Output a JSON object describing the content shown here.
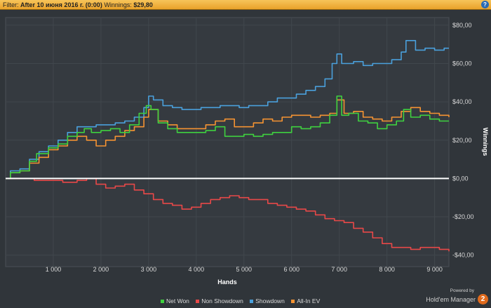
{
  "filter_bar": {
    "prefix": "Filter:",
    "filter_value": "After 10 июня 2016 г. (0:00)",
    "winnings_label": "Winnings:",
    "winnings_value": "$29,80",
    "help_icon": "?"
  },
  "branding": {
    "powered_by": "Powered by",
    "name": "Hold'em Manager",
    "logo_text": "2"
  },
  "chart_data": {
    "type": "line",
    "xlabel": "Hands",
    "ylabel": "Winnings",
    "xlim": [
      0,
      9300
    ],
    "ylim": [
      -46,
      84
    ],
    "x_ticks": [
      1000,
      2000,
      3000,
      4000,
      5000,
      6000,
      7000,
      8000,
      9000
    ],
    "x_tick_labels": [
      "1 000",
      "2 000",
      "3 000",
      "4 000",
      "5 000",
      "6 000",
      "7 000",
      "8 000",
      "9 000"
    ],
    "y_ticks": [
      -40,
      -20,
      0,
      20,
      40,
      60,
      80
    ],
    "y_tick_labels": [
      "-$40,00",
      "-$20,00",
      "$0,00",
      "$20,00",
      "$40,00",
      "$60,00",
      "$80,00"
    ],
    "grid": true,
    "legend_position": "bottom",
    "series": [
      {
        "name": "Net Won",
        "color": "#3fd13f",
        "x": [
          0,
          100,
          300,
          500,
          650,
          900,
          1100,
          1300,
          1500,
          1650,
          1800,
          2000,
          2200,
          2400,
          2600,
          2800,
          2950,
          3050,
          3200,
          3400,
          3600,
          3800,
          4000,
          4200,
          4400,
          4600,
          4800,
          5000,
          5200,
          5400,
          5600,
          5800,
          6000,
          6200,
          6400,
          6600,
          6800,
          6950,
          7050,
          7200,
          7400,
          7600,
          7800,
          8000,
          8200,
          8350,
          8500,
          8700,
          8900,
          9100,
          9300
        ],
        "y": [
          0,
          3,
          4,
          9,
          13,
          16,
          18,
          22,
          24,
          26,
          24,
          25,
          26,
          24,
          28,
          34,
          38,
          36,
          29,
          26,
          24,
          24,
          24,
          25,
          27,
          22,
          22,
          23,
          22,
          23,
          24,
          24,
          27,
          26,
          27,
          29,
          33,
          43,
          33,
          34,
          30,
          29,
          26,
          28,
          30,
          36,
          32,
          33,
          31,
          30,
          30
        ]
      },
      {
        "name": "Non Showdown",
        "color": "#e84848",
        "x": [
          0,
          300,
          600,
          900,
          1200,
          1500,
          1700,
          1900,
          2100,
          2300,
          2500,
          2700,
          2900,
          3100,
          3300,
          3500,
          3700,
          3900,
          4100,
          4300,
          4500,
          4700,
          4900,
          5100,
          5300,
          5500,
          5700,
          5900,
          6100,
          6300,
          6500,
          6700,
          6900,
          7100,
          7300,
          7500,
          7700,
          7900,
          8100,
          8300,
          8500,
          8700,
          8900,
          9100,
          9300
        ],
        "y": [
          0,
          0,
          -1,
          -1,
          -2,
          -1,
          0,
          -3,
          -5,
          -4,
          -3,
          -6,
          -8,
          -11,
          -13,
          -14,
          -16,
          -15,
          -13,
          -11,
          -10,
          -9,
          -10,
          -11,
          -11,
          -13,
          -14,
          -15,
          -16,
          -17,
          -19,
          -21,
          -22,
          -23,
          -26,
          -28,
          -31,
          -34,
          -36,
          -36,
          -37,
          -36,
          -36,
          -37,
          -38
        ]
      },
      {
        "name": "Showdown",
        "color": "#4aa0dc",
        "x": [
          0,
          100,
          300,
          500,
          700,
          900,
          1100,
          1300,
          1500,
          1700,
          1900,
          2100,
          2300,
          2500,
          2700,
          2900,
          3000,
          3100,
          3300,
          3500,
          3700,
          3900,
          4100,
          4300,
          4500,
          4700,
          4900,
          5100,
          5300,
          5500,
          5700,
          5900,
          6100,
          6300,
          6500,
          6700,
          6850,
          6950,
          7050,
          7300,
          7500,
          7700,
          7900,
          8100,
          8300,
          8400,
          8600,
          8800,
          9000,
          9200,
          9300
        ],
        "y": [
          0,
          4,
          5,
          10,
          14,
          17,
          20,
          24,
          27,
          27,
          28,
          28,
          29,
          30,
          32,
          37,
          43,
          41,
          38,
          37,
          36,
          36,
          37,
          37,
          38,
          38,
          37,
          38,
          38,
          40,
          42,
          42,
          44,
          46,
          48,
          52,
          60,
          65,
          60,
          61,
          59,
          60,
          60,
          62,
          66,
          72,
          67,
          68,
          67,
          68,
          68
        ]
      },
      {
        "name": "All-In EV",
        "color": "#f59332",
        "x": [
          0,
          100,
          300,
          500,
          700,
          900,
          1100,
          1300,
          1500,
          1700,
          1900,
          2100,
          2300,
          2500,
          2700,
          2900,
          3000,
          3200,
          3400,
          3600,
          3800,
          4000,
          4200,
          4400,
          4600,
          4800,
          5000,
          5200,
          5400,
          5600,
          5800,
          6000,
          6200,
          6400,
          6600,
          6800,
          6950,
          7100,
          7300,
          7500,
          7700,
          7900,
          8100,
          8300,
          8500,
          8700,
          8900,
          9100,
          9300
        ],
        "y": [
          0,
          3,
          4,
          8,
          11,
          15,
          17,
          20,
          22,
          20,
          17,
          20,
          22,
          25,
          27,
          32,
          36,
          30,
          28,
          26,
          26,
          26,
          28,
          30,
          31,
          27,
          27,
          29,
          31,
          30,
          32,
          33,
          33,
          32,
          33,
          34,
          41,
          34,
          35,
          32,
          31,
          30,
          32,
          35,
          37,
          35,
          34,
          33,
          32
        ]
      }
    ]
  }
}
